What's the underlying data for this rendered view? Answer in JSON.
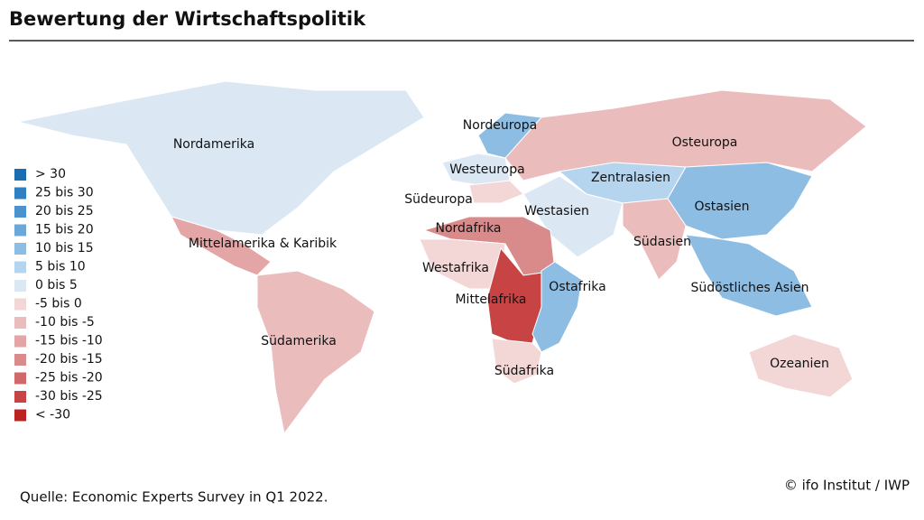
{
  "header": {
    "title": "Bewertung der Wirtschaftspolitik"
  },
  "legend": [
    {
      "label": "> 30",
      "color": "#1a6db3"
    },
    {
      "label": "25 bis 30",
      "color": "#2f80c2"
    },
    {
      "label": "20 bis 25",
      "color": "#4b93cf"
    },
    {
      "label": "15 bis 20",
      "color": "#6ba8da"
    },
    {
      "label": "10 bis 15",
      "color": "#8dbde3"
    },
    {
      "label": "5 bis 10",
      "color": "#b5d4ee"
    },
    {
      "label": "0 bis 5",
      "color": "#dbe8f4"
    },
    {
      "label": "-5 bis 0",
      "color": "#f3d6d6"
    },
    {
      "label": "-10 bis -5",
      "color": "#ebbcbc"
    },
    {
      "label": "-15 bis -10",
      "color": "#e3a5a5"
    },
    {
      "label": "-20 bis -15",
      "color": "#d98a8a"
    },
    {
      "label": "-25 bis -20",
      "color": "#d06a6a"
    },
    {
      "label": "-30 bis -25",
      "color": "#c84444"
    },
    {
      "label": "< -30",
      "color": "#bb2222"
    }
  ],
  "regions": [
    {
      "label": "Nordamerika",
      "color": "#dbe8f4"
    },
    {
      "label": "Mittelamerika & Karibik",
      "color": "#e3a5a5"
    },
    {
      "label": "Südamerika",
      "color": "#ebbcbc"
    },
    {
      "label": "Nordeuropa",
      "color": "#8dbde3"
    },
    {
      "label": "Westeuropa",
      "color": "#dbe8f4"
    },
    {
      "label": "Südeuropa",
      "color": "#f3d6d6"
    },
    {
      "label": "Osteuropa",
      "color": "#ebbcbc"
    },
    {
      "label": "Zentralasien",
      "color": "#b5d4ee"
    },
    {
      "label": "Westasien",
      "color": "#dbe8f4"
    },
    {
      "label": "Ostasien",
      "color": "#8dbde3"
    },
    {
      "label": "Nordafrika",
      "color": "#d98a8a"
    },
    {
      "label": "Südasien",
      "color": "#ebbcbc"
    },
    {
      "label": "Westafrika",
      "color": "#f3d6d6"
    },
    {
      "label": "Mittelafrika",
      "color": "#c84444"
    },
    {
      "label": "Ostafrika",
      "color": "#8dbde3"
    },
    {
      "label": "Südöstliches Asien",
      "color": "#8dbde3"
    },
    {
      "label": "Südafrika",
      "color": "#f3d6d6"
    },
    {
      "label": "Ozeanien",
      "color": "#f3d6d6"
    }
  ],
  "footer": {
    "source": "Quelle: Economic Experts Survey in Q1 2022.",
    "credit": "© ifo Institut / IWP"
  }
}
